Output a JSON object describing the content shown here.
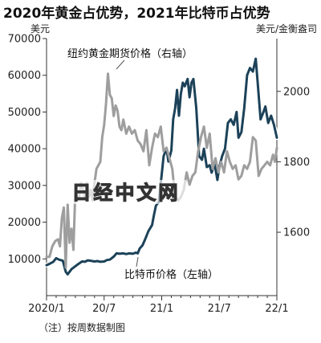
{
  "chart_data": {
    "type": "line",
    "title": "2020年黄金占优势，2021年比特币占优势",
    "ylabel": "美元",
    "y2label": "美元/金衡盎司",
    "ylim": [
      0,
      70000
    ],
    "y2lim": [
      1420,
      2150
    ],
    "yticks": [
      "10000",
      "20000",
      "30000",
      "40000",
      "50000",
      "60000",
      "70000"
    ],
    "y2ticks": [
      "1600",
      "1800",
      "2000"
    ],
    "y2tick_values": [
      1600,
      1800,
      2000
    ],
    "xticks": [
      "2020/1",
      "20/7",
      "21/1",
      "21/7",
      "22/1"
    ],
    "xtick_values": [
      0,
      6,
      12,
      18,
      24
    ],
    "grid": false,
    "watermark": "日经中文网",
    "series": [
      {
        "name": "比特币价格（左轴）",
        "axis": "left",
        "color": "#1c4259",
        "x": [
          0,
          0.35,
          0.7,
          1.0,
          1.3,
          1.7,
          2.0,
          2.2,
          2.4,
          2.6,
          3.0,
          3.3,
          3.7,
          4.0,
          4.3,
          4.6,
          5.0,
          5.3,
          5.6,
          6.0,
          6.3,
          6.6,
          7.0,
          7.3,
          7.6,
          8.0,
          8.3,
          8.6,
          9.0,
          9.3,
          9.5,
          9.7,
          10.0,
          10.3,
          10.6,
          11.0,
          11.2,
          11.4,
          11.7,
          12.0,
          12.2,
          12.5,
          12.7,
          13.0,
          13.2,
          13.4,
          13.6,
          13.8,
          14.0,
          14.2,
          14.4,
          14.7,
          14.9,
          15.1,
          15.3,
          15.6,
          15.9,
          16.2,
          16.4,
          16.7,
          17.0,
          17.2,
          17.5,
          17.8,
          18.0,
          18.3,
          18.6,
          18.9,
          19.2,
          19.5,
          19.8,
          20.0,
          20.3,
          20.6,
          20.9,
          21.2,
          21.5,
          21.8,
          22.0,
          22.3,
          22.6,
          22.8,
          23.1,
          23.4,
          23.7,
          24.0
        ],
        "values": [
          8300,
          8700,
          9200,
          10200,
          9800,
          9500,
          6500,
          5800,
          6500,
          7200,
          8000,
          8600,
          9300,
          9200,
          9600,
          9500,
          9300,
          9400,
          9200,
          9300,
          9700,
          9800,
          10600,
          11500,
          11400,
          11500,
          11300,
          11500,
          11400,
          11700,
          11500,
          12800,
          13700,
          15500,
          17500,
          19200,
          22000,
          24500,
          25500,
          33000,
          38000,
          40000,
          36500,
          39500,
          48000,
          51000,
          56000,
          49000,
          55000,
          58000,
          57000,
          59000,
          54000,
          58000,
          59000,
          51000,
          38000,
          37000,
          40000,
          35000,
          35500,
          33500,
          36000,
          31500,
          35000,
          38000,
          40000,
          47000,
          48000,
          46500,
          50000,
          43000,
          44500,
          51000,
          60000,
          62000,
          61000,
          64500,
          58000,
          48000,
          50000,
          51500,
          47000,
          49000,
          46500,
          43000
        ]
      },
      {
        "name": "纽约黄金期货价格（右轴）",
        "axis": "right",
        "color": "#9e9e9e",
        "x": [
          0,
          0.3,
          0.6,
          0.9,
          1.2,
          1.4,
          1.6,
          1.8,
          2.0,
          2.2,
          2.4,
          2.6,
          2.8,
          3.0,
          3.2,
          3.4,
          3.6,
          3.8,
          4.0,
          4.2,
          4.4,
          4.6,
          4.8,
          5.0,
          5.2,
          5.4,
          5.6,
          5.8,
          6.0,
          6.2,
          6.4,
          6.6,
          6.8,
          7.0,
          7.2,
          7.4,
          7.6,
          7.8,
          8.0,
          8.3,
          8.6,
          8.9,
          9.2,
          9.5,
          9.8,
          10.1,
          10.4,
          10.7,
          11.0,
          11.3,
          11.6,
          11.9,
          12.2,
          12.5,
          12.8,
          13.1,
          13.4,
          13.7,
          14.0,
          14.3,
          14.6,
          14.9,
          15.2,
          15.5,
          15.8,
          16.1,
          16.4,
          16.7,
          17.0,
          17.3,
          17.6,
          17.9,
          18.2,
          18.5,
          18.8,
          19.1,
          19.4,
          19.7,
          20.0,
          20.3,
          20.6,
          20.9,
          21.2,
          21.5,
          21.8,
          22.1,
          22.4,
          22.7,
          23.0,
          23.3,
          23.6,
          23.8,
          24.0
        ],
        "values": [
          1530,
          1530,
          1560,
          1575,
          1580,
          1560,
          1640,
          1670,
          1500,
          1680,
          1570,
          1610,
          1550,
          1720,
          1690,
          1700,
          1740,
          1720,
          1700,
          1740,
          1700,
          1720,
          1690,
          1740,
          1780,
          1790,
          1800,
          1870,
          1905,
          1965,
          2050,
          1990,
          1980,
          1930,
          1960,
          1945,
          1900,
          1890,
          1920,
          1880,
          1900,
          1880,
          1890,
          1860,
          1850,
          1830,
          1890,
          1790,
          1840,
          1880,
          1870,
          1900,
          1830,
          1840,
          1810,
          1780,
          1700,
          1690,
          1700,
          1720,
          1770,
          1735,
          1760,
          1770,
          1830,
          1870,
          1900,
          1840,
          1880,
          1780,
          1810,
          1770,
          1800,
          1770,
          1830,
          1800,
          1780,
          1790,
          1750,
          1760,
          1790,
          1780,
          1800,
          1870,
          1860,
          1760,
          1780,
          1790,
          1800,
          1790,
          1820,
          1800,
          1840
        ]
      }
    ],
    "annotations": {
      "gold": "纽约黄金期货价格（右轴）",
      "btc": "比特币价格（左轴）"
    },
    "note": "（注）按周数据制图"
  },
  "style": {
    "axis_color": "#333333",
    "gold_halo": "#ffffff"
  }
}
